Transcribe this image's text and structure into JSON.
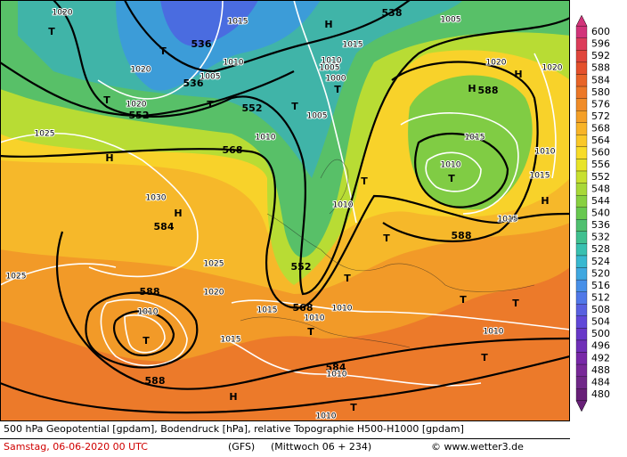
{
  "map_labels": [
    "1020",
    "T",
    "1015",
    "536",
    "T",
    "1010",
    "1020",
    "536",
    "1005",
    "T",
    "1020",
    "552",
    "T",
    "552",
    "T",
    "H",
    "538",
    "1005",
    "1015",
    "1010",
    "1005",
    "1000",
    "T",
    "1005",
    "1025",
    "H",
    "568",
    "1010",
    "T",
    "1010",
    "H",
    "588",
    "H",
    "1020",
    "1020",
    "1015",
    "1010",
    "T",
    "1010",
    "1015",
    "H",
    "1015",
    "588",
    "1030",
    "H",
    "584",
    "T",
    "1025",
    "1025",
    "552",
    "T",
    "588",
    "1020",
    "1010",
    "T",
    "1015",
    "568",
    "1010",
    "1010",
    "T",
    "T",
    "1015",
    "T",
    "1010",
    "T",
    "584",
    "1010",
    "588",
    "H",
    "T",
    "1010"
  ],
  "colorbar": {
    "ticks": [
      600,
      596,
      592,
      588,
      584,
      580,
      576,
      572,
      568,
      564,
      560,
      556,
      552,
      548,
      544,
      540,
      536,
      532,
      528,
      524,
      520,
      516,
      512,
      508,
      504,
      500,
      496,
      492,
      488,
      484,
      480
    ],
    "colors": [
      "#d2347a",
      "#dc3c5a",
      "#e0463c",
      "#e4502c",
      "#e86428",
      "#ec7828",
      "#f08c28",
      "#f4a028",
      "#f8b428",
      "#fac828",
      "#f8dc28",
      "#e8e428",
      "#c8e030",
      "#a8d838",
      "#88d040",
      "#68c850",
      "#50c070",
      "#40c090",
      "#38c0b0",
      "#38b8d0",
      "#40a8e0",
      "#4890e8",
      "#5078e8",
      "#5860e0",
      "#6048d8",
      "#6838c8",
      "#7030b8",
      "#7828a8",
      "#782898",
      "#702888",
      "#682078"
    ]
  },
  "footer": {
    "line1": "500 hPa Geopotential [gpdam], Bodendruck [hPa], relative Topographie H500-H1000 [gpdam]",
    "date": "Samstag, 06-06-2020  00 UTC",
    "model": "(GFS)",
    "run": "(Mittwoch 06 + 234)",
    "site": "© www.wetter3.de"
  }
}
